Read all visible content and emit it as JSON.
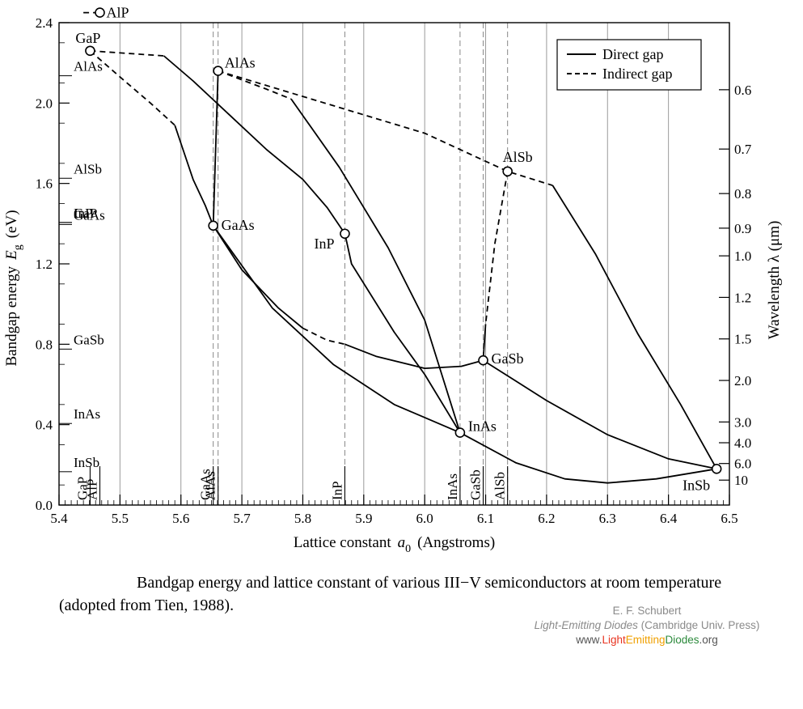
{
  "chart_data": {
    "type": "line",
    "xlabel_prefix": "Lattice constant",
    "xlabel_var": "a",
    "xlabel_sub": "0",
    "xlabel_suffix": "(Angstroms)",
    "ylabel_prefix": "Bandgap energy",
    "ylabel_var": "E",
    "ylabel_sub": "g",
    "ylabel_unit": "(eV)",
    "y2label": "Wavelength  λ  (μm)",
    "xlim": [
      5.4,
      6.5
    ],
    "ylim": [
      0.0,
      2.4
    ],
    "x_ticks": [
      "5.4",
      "5.5",
      "5.6",
      "5.7",
      "5.8",
      "5.9",
      "6.0",
      "6.1",
      "6.2",
      "6.3",
      "6.4",
      "6.5"
    ],
    "y_ticks": [
      "0.0",
      "0.4",
      "0.8",
      "1.2",
      "1.6",
      "2.0",
      "2.4"
    ],
    "wavelength_ticks": [
      {
        "label": "0.6",
        "um": 0.6
      },
      {
        "label": "0.7",
        "um": 0.7
      },
      {
        "label": "0.8",
        "um": 0.8
      },
      {
        "label": "0.9",
        "um": 0.9
      },
      {
        "label": "1.0",
        "um": 1.0
      },
      {
        "label": "1.2",
        "um": 1.2
      },
      {
        "label": "1.5",
        "um": 1.5
      },
      {
        "label": "2.0",
        "um": 2.0
      },
      {
        "label": "3.0",
        "um": 3.0
      },
      {
        "label": "4.0",
        "um": 4.0
      },
      {
        "label": "6.0",
        "um": 6.0
      },
      {
        "label": "10",
        "um": 10
      }
    ],
    "legend": [
      {
        "label": "Direct gap",
        "style": "solid"
      },
      {
        "label": "Indirect gap",
        "style": "dashed"
      }
    ],
    "legend_position": "top-right",
    "grid": "vertical",
    "materials": [
      {
        "name": "AlP",
        "a": 5.467,
        "eg": 2.45
      },
      {
        "name": "GaP",
        "a": 5.451,
        "eg": 2.26
      },
      {
        "name": "AlAs",
        "a": 5.661,
        "eg": 2.16
      },
      {
        "name": "AlSb",
        "a": 6.136,
        "eg": 1.66
      },
      {
        "name": "GaAs",
        "a": 5.653,
        "eg": 1.39
      },
      {
        "name": "InP",
        "a": 5.869,
        "eg": 1.35
      },
      {
        "name": "GaSb",
        "a": 6.096,
        "eg": 0.72
      },
      {
        "name": "InAs",
        "a": 6.058,
        "eg": 0.36
      },
      {
        "name": "InSb",
        "a": 6.479,
        "eg": 0.18
      }
    ],
    "left_axis_labels": [
      {
        "text": "AlAs",
        "eg": 2.16
      },
      {
        "text": "AlSb",
        "eg": 1.65
      },
      {
        "text": "GaP",
        "eg": 1.43
      },
      {
        "text": "InP",
        "eg": 1.43
      },
      {
        "text": "GaAs",
        "eg": 1.42
      },
      {
        "text": "GaSb",
        "eg": 0.8
      },
      {
        "text": "InAs",
        "eg": 0.43
      },
      {
        "text": "InSb",
        "eg": 0.19
      }
    ],
    "bottom_axis_labels": [
      {
        "text": "GaP",
        "a": 5.451
      },
      {
        "text": "AlP",
        "a": 5.467
      },
      {
        "text": "GaAs",
        "a": 5.653
      },
      {
        "text": "AlAs",
        "a": 5.661
      },
      {
        "text": "InP",
        "a": 5.869
      },
      {
        "text": "InAs",
        "a": 6.058
      },
      {
        "text": "GaSb",
        "a": 6.096
      },
      {
        "text": "AlSb",
        "a": 6.136
      }
    ],
    "curves": [
      {
        "style": "dashed",
        "points": [
          [
            5.44,
            2.45
          ],
          [
            5.467,
            2.45
          ]
        ]
      },
      {
        "style": "dashed",
        "points": [
          [
            5.451,
            2.26
          ],
          [
            5.572,
            2.235
          ]
        ]
      },
      {
        "style": "solid",
        "points": [
          [
            5.572,
            2.235
          ],
          [
            5.62,
            2.11
          ],
          [
            5.68,
            1.94
          ],
          [
            5.74,
            1.77
          ],
          [
            5.8,
            1.62
          ],
          [
            5.84,
            1.48
          ],
          [
            5.869,
            1.35
          ]
        ]
      },
      {
        "style": "dashed",
        "points": [
          [
            5.451,
            2.26
          ],
          [
            5.5,
            2.13
          ],
          [
            5.55,
            2.0
          ],
          [
            5.59,
            1.89
          ]
        ]
      },
      {
        "style": "solid",
        "points": [
          [
            5.59,
            1.89
          ],
          [
            5.6,
            1.8
          ],
          [
            5.62,
            1.62
          ],
          [
            5.64,
            1.49
          ],
          [
            5.653,
            1.39
          ]
        ]
      },
      {
        "style": "solid",
        "points": [
          [
            5.653,
            1.39
          ],
          [
            5.661,
            2.16
          ]
        ]
      },
      {
        "style": "dashed",
        "points": [
          [
            5.661,
            2.16
          ],
          [
            5.74,
            2.07
          ],
          [
            5.781,
            2.02
          ]
        ]
      },
      {
        "style": "solid",
        "points": [
          [
            5.781,
            2.02
          ],
          [
            5.86,
            1.68
          ],
          [
            5.94,
            1.28
          ],
          [
            6.0,
            0.92
          ],
          [
            6.058,
            0.36
          ]
        ]
      },
      {
        "style": "dashed",
        "points": [
          [
            5.661,
            2.16
          ],
          [
            6.0,
            1.85
          ],
          [
            6.136,
            1.66
          ],
          [
            6.21,
            1.59
          ]
        ]
      },
      {
        "style": "solid",
        "points": [
          [
            6.21,
            1.59
          ],
          [
            6.28,
            1.25
          ],
          [
            6.35,
            0.85
          ],
          [
            6.42,
            0.5
          ],
          [
            6.479,
            0.18
          ]
        ]
      },
      {
        "style": "dashed",
        "points": [
          [
            6.136,
            1.66
          ],
          [
            6.115,
            1.3
          ],
          [
            6.1,
            0.9
          ]
        ]
      },
      {
        "style": "solid",
        "points": [
          [
            6.1,
            0.9
          ],
          [
            6.096,
            0.72
          ]
        ]
      },
      {
        "style": "solid",
        "points": [
          [
            5.653,
            1.39
          ],
          [
            5.7,
            1.17
          ],
          [
            5.76,
            0.98
          ],
          [
            5.8,
            0.88
          ]
        ]
      },
      {
        "style": "dashed",
        "points": [
          [
            5.8,
            0.88
          ],
          [
            5.84,
            0.82
          ],
          [
            5.869,
            0.8
          ]
        ]
      },
      {
        "style": "solid",
        "points": [
          [
            5.869,
            0.8
          ],
          [
            5.92,
            0.74
          ],
          [
            6.0,
            0.68
          ],
          [
            6.06,
            0.69
          ],
          [
            6.096,
            0.72
          ]
        ]
      },
      {
        "style": "solid",
        "points": [
          [
            5.653,
            1.39
          ],
          [
            5.75,
            0.98
          ],
          [
            5.85,
            0.7
          ],
          [
            5.95,
            0.5
          ],
          [
            6.058,
            0.36
          ]
        ]
      },
      {
        "style": "solid",
        "points": [
          [
            5.869,
            1.35
          ],
          [
            5.88,
            1.2
          ],
          [
            5.95,
            0.86
          ],
          [
            6.0,
            0.65
          ],
          [
            6.058,
            0.36
          ]
        ]
      },
      {
        "style": "solid",
        "points": [
          [
            6.058,
            0.36
          ],
          [
            6.15,
            0.21
          ],
          [
            6.23,
            0.13
          ],
          [
            6.3,
            0.11
          ],
          [
            6.38,
            0.13
          ],
          [
            6.479,
            0.18
          ]
        ]
      },
      {
        "style": "solid",
        "points": [
          [
            6.096,
            0.72
          ],
          [
            6.2,
            0.52
          ],
          [
            6.3,
            0.35
          ],
          [
            6.4,
            0.23
          ],
          [
            6.479,
            0.18
          ]
        ]
      }
    ]
  },
  "caption": "Bandgap energy and lattice constant of various III−V semiconductors at room temperature (adopted from Tien, 1988).",
  "credit": {
    "line1": "E. F. Schubert",
    "line2_title": "Light-Emitting Diodes",
    "line2_rest": "(Cambridge Univ. Press)",
    "line3_pre": "www.",
    "line3_light": "Light",
    "line3_emitting": "Emitting",
    "line3_diodes": "Diodes",
    "line3_post": ".org"
  }
}
